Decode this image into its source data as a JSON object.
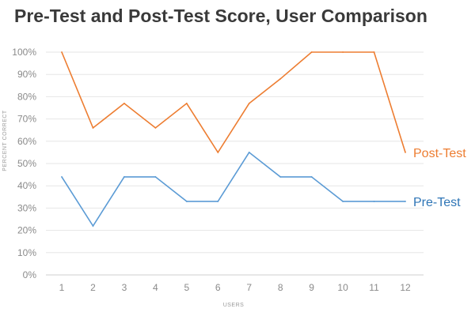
{
  "chart_data": {
    "type": "line",
    "title": "Pre-Test and Post-Test Score, User Comparison",
    "xlabel": "USERS",
    "ylabel": "PERCENT CORRECT",
    "categories": [
      "1",
      "2",
      "3",
      "4",
      "5",
      "6",
      "7",
      "8",
      "9",
      "10",
      "11",
      "12"
    ],
    "ylim": [
      0,
      100
    ],
    "ytick_labels": [
      "0%",
      "10%",
      "20%",
      "30%",
      "40%",
      "50%",
      "60%",
      "70%",
      "80%",
      "90%",
      "100%"
    ],
    "grid": true,
    "legend": "series labels at right end of lines",
    "series": [
      {
        "name": "Post-Test",
        "color": "#ED7D31",
        "values": [
          100,
          66,
          77,
          66,
          77,
          55,
          77,
          88,
          100,
          100,
          100,
          55
        ]
      },
      {
        "name": "Pre-Test",
        "color": "#5B9BD5",
        "label_color": "#2E75B6",
        "values": [
          44,
          22,
          44,
          44,
          33,
          33,
          55,
          44,
          44,
          33,
          33,
          33
        ]
      }
    ]
  }
}
